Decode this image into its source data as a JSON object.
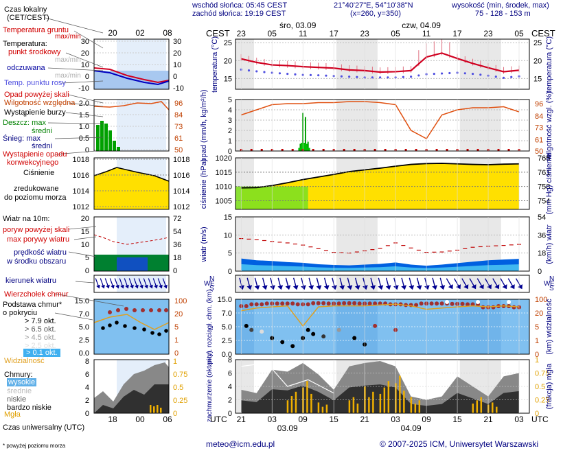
{
  "header": {
    "sunrise": "wschód słońca: 05:45 CEST",
    "sunset": "zachód słońca: 19:19 CEST",
    "coords": "21°40'27\"E, 54°10'38\"N",
    "grid": "(x=260, y=350)",
    "height_title": "wysokość (min, środek, max)",
    "height_values": "75 - 128 - 153 m"
  },
  "legend": {
    "local_time": "Czas lokalny",
    "local_time_zone": "(CET/CEST)",
    "soil_temp": "Temperatura gruntu",
    "soil_temp_range": "max/min",
    "temperature": "Temperatura:",
    "mid_point": "punkt środkowy",
    "max_min_1": "max/min",
    "felt": "odczuwana",
    "max_min_2": "max/min",
    "dew": "Temp. punktu rosy",
    "precip_above": "Opad powyżej skali",
    "humidity": "Wilgotność względna",
    "storm": "Wystąpienie burzy",
    "rain": "Deszcz: max",
    "rain_mean": "średni",
    "snow": "Śnieg: max",
    "snow_mean": "średni",
    "convective_1": "Wystąpienie opadu",
    "convective_2": "konwekcyjnego",
    "pressure_1": "Ciśnienie",
    "pressure_2": "zredukowane",
    "pressure_3": "do poziomu morza",
    "wind_10m": "Wiatr na 10m:",
    "gust_above": "poryw powyżej skali",
    "max_gust": "max porywy wiatru",
    "wind_speed_1": "prędkość wiatru",
    "wind_speed_2": "w środku obszaru",
    "wind_dir": "kierunek wiatru",
    "cloud_top": "Wierzchołek chmur",
    "cloud_base_1": "Podstawa chmur*",
    "cloud_base_2": "o pokryciu",
    "okt_1": "> 7.9 okt.",
    "okt_2": "> 6.5 okt.",
    "okt_3": "> 4.5 okt.",
    "okt_4": "> 2.5 okt.",
    "okt_5": "> 0.1 okt.",
    "visibility": "Widzialność",
    "clouds": "Chmury:",
    "high": "wysokie",
    "mid": "średnie",
    "low": "niskie",
    "very_low": "bardzo niskie",
    "fog": "Mgła",
    "utc_label": "Czas uniwersalny (UTC)",
    "footnote": "* powyżej poziomu morza",
    "mini_local_ticks": [
      "20",
      "02",
      "08"
    ],
    "mini_utc_ticks": [
      "18",
      "00",
      "06"
    ]
  },
  "axes": {
    "cest": "CEST",
    "utc": "UTC",
    "local_ticks": [
      "23",
      "05",
      "11",
      "17",
      "23",
      "05",
      "11",
      "17",
      "23",
      "05"
    ],
    "utc_ticks": [
      "21",
      "03",
      "09",
      "15",
      "21",
      "03",
      "09",
      "15",
      "21",
      "03"
    ],
    "day1_top": "śro, 03.09",
    "day2_top": "czw, 04.09",
    "day1_bottom": "03.09",
    "day2_bottom": "04.09",
    "p1_ylabel_l": "temperatura (°C)",
    "p1_ylabel_r": "temperatura (°C)",
    "p2_ylabel_l": "opad (mm/h, kg/m²/h)",
    "p2_ylabel_r": "wilgotność wzgl. (%)",
    "p3_ylabel_l": "ciśnienie (hPa)",
    "p3_ylabel_r": "(mm Hg) ciśnienie",
    "p4_ylabel_l": "wiatr (m/s)",
    "p4_ylabel_r": "(km/h) wiatr",
    "p6_ylabel_l": "pion. rozciągł. chm. (km)",
    "p6_ylabel_r": "(km) widzialność",
    "p7_ylabel_l": "zachmurzenie (oktanty)",
    "p7_ylabel_r": "(frakcja) mgła",
    "compass": [
      "N",
      "W",
      "E",
      "S"
    ]
  },
  "footer": {
    "email": "meteo@icm.edu.pl",
    "copyright": "© 2007-2025 ICM, Uniwersytet Warszawski"
  },
  "colors": {
    "temp": "#d00020",
    "dew": "#5050e0",
    "humidity": "#e05010",
    "pressure_fill": "#ffe000",
    "pressure_low_fill": "#80e020",
    "wind": "#0050d0",
    "gust": "#c00000",
    "arrow": "#000090",
    "cloud_bg": "#80c0f0",
    "visibility": "#e0a020",
    "fog": "#f0b000"
  },
  "chart_data": [
    {
      "type": "line",
      "title": "temperatura",
      "ylabel": "temperatura (°C)",
      "ylim": [
        12,
        26
      ],
      "yticks": [
        15,
        20,
        25
      ],
      "x_hours_utc": [
        0,
        3,
        6,
        9,
        12,
        15,
        18,
        21,
        24,
        27,
        30,
        33,
        36,
        39,
        42,
        45,
        48,
        51,
        54
      ],
      "series": [
        {
          "name": "punkt środkowy",
          "values": [
            20.5,
            19.5,
            18.8,
            18.6,
            18.3,
            18.1,
            17.9,
            17.4,
            17.2,
            16.8,
            16.9,
            17.2,
            21.0,
            22.1,
            20.6,
            19.2,
            18.0,
            16.9,
            17.3
          ]
        },
        {
          "name": "Temp. punktu rosy",
          "values": [
            17.5,
            17.0,
            16.6,
            16.3,
            16.0,
            15.9,
            15.7,
            15.5,
            15.3,
            15.3,
            15.3,
            15.5,
            16.2,
            16.4,
            16.6,
            16.3,
            15.8,
            15.2,
            15.6
          ]
        }
      ]
    },
    {
      "type": "bar",
      "title": "opad",
      "ylabel": "opad (mm/h, kg/m²/h)",
      "ylim": [
        0,
        5
      ],
      "yticks": [
        0,
        1,
        2,
        3,
        4,
        5
      ],
      "y2label": "wilgotność wzgl. (%)",
      "y2lim": [
        50,
        100
      ],
      "y2ticks": [
        50,
        61,
        73,
        84,
        96
      ],
      "x_hours_utc": [
        11.5,
        12,
        12.5,
        13
      ],
      "series": [
        {
          "name": "Deszcz: max",
          "values": [
            0.7,
            3.7,
            3.3,
            0.9
          ]
        },
        {
          "name": "średni",
          "values": [
            0.3,
            0.8,
            0.7,
            0.3
          ]
        },
        {
          "name": "Wilgotność względna",
          "x_hours_utc": [
            0,
            3,
            6,
            9,
            12,
            15,
            18,
            21,
            24,
            27,
            30,
            33,
            36,
            39,
            42,
            45,
            48,
            51,
            54
          ],
          "values": [
            85,
            90,
            95,
            96,
            96,
            97,
            97,
            98,
            98,
            97,
            95,
            70,
            62,
            85,
            90,
            92,
            92,
            93,
            88
          ]
        }
      ]
    },
    {
      "type": "area",
      "title": "ciśnienie",
      "ylabel": "ciśnienie (hPa)",
      "ylim": [
        1002,
        1020
      ],
      "yticks": [
        1005,
        1010,
        1015,
        1020
      ],
      "y2label": "(mm Hg)",
      "y2ticks": [
        754,
        758,
        761,
        765
      ],
      "x_hours_utc": [
        0,
        3,
        6,
        9,
        12,
        15,
        18,
        21,
        24,
        27,
        30,
        33,
        36,
        39,
        42,
        45,
        48,
        51,
        54
      ],
      "series": [
        {
          "name": "Ciśnienie",
          "values": [
            1009.5,
            1009.6,
            1010.3,
            1011.3,
            1012.4,
            1013.3,
            1014.2,
            1015.2,
            1015.8,
            1016.4,
            1017.1,
            1017.7,
            1018.0,
            1018.1,
            1017.9,
            1017.7,
            1017.6,
            1017.8,
            1017.9
          ]
        }
      ]
    },
    {
      "type": "line",
      "title": "wiatr",
      "ylabel": "wiatr (m/s)",
      "ylim": [
        0,
        15
      ],
      "yticks": [
        0,
        5,
        10,
        15
      ],
      "y2label": "(km/h)",
      "y2ticks": [
        0,
        18,
        36,
        54
      ],
      "x_hours_utc": [
        0,
        3,
        6,
        9,
        12,
        15,
        18,
        21,
        24,
        27,
        30,
        33,
        36,
        39,
        42,
        45,
        48,
        51,
        54
      ],
      "series": [
        {
          "name": "max porywy wiatru",
          "values": [
            9.0,
            8.7,
            8.2,
            7.8,
            7.2,
            6.2,
            5.2,
            5.0,
            5.6,
            6.3,
            7.8,
            6.4,
            5.2,
            5.3,
            5.8,
            6.6,
            6.9,
            7.1,
            7.4
          ]
        },
        {
          "name": "prędkość wiatru w środku obszaru",
          "values": [
            3.5,
            3.0,
            2.8,
            2.5,
            2.3,
            1.9,
            1.7,
            1.6,
            1.8,
            2.0,
            2.4,
            1.8,
            1.5,
            1.8,
            2.2,
            2.6,
            3.0,
            3.2,
            3.4
          ]
        }
      ]
    },
    {
      "type": "scatter",
      "title": "pion. rozciągł. chm.",
      "ylabel": "pion. rozciągł. chm. (km)",
      "ylim": [
        0,
        15
      ],
      "yticks": [
        0.0,
        2.5,
        5.0,
        7.0,
        15.0
      ],
      "y2label": "(km) widzialność",
      "y2ticks": [
        0,
        1,
        5,
        20,
        100
      ],
      "x_hours_utc": [
        0,
        3,
        6,
        9,
        12,
        15,
        18,
        21,
        24,
        27,
        30,
        33,
        36,
        39,
        42,
        45,
        48,
        51,
        54
      ],
      "series": [
        {
          "name": "Wierzchołek chmur",
          "values": [
            13.5,
            14.0,
            14.2,
            14.2,
            14.0,
            14.3,
            14.2,
            14.3,
            14.2,
            14.2,
            14.0,
            13.8,
            14.2,
            14.2,
            14.1,
            14.0,
            13.2,
            13.5,
            13.2
          ]
        },
        {
          "name": "Widzialność",
          "values": [
            30,
            40,
            45,
            50,
            6,
            45,
            50,
            50,
            50,
            55,
            60,
            50,
            35,
            40,
            45,
            50,
            45,
            50,
            45
          ]
        }
      ]
    },
    {
      "type": "area",
      "title": "zachmurzenie",
      "ylabel": "zachmurzenie (oktanty)",
      "ylim": [
        0,
        8
      ],
      "yticks": [
        0,
        2,
        4,
        6,
        8
      ],
      "y2label": "(frakcja) mgła",
      "y2ticks": [
        0,
        0.25,
        0.5,
        0.75,
        1
      ],
      "x_hours_utc": [
        0,
        3,
        6,
        9,
        12,
        15,
        18,
        21,
        24,
        27,
        30,
        33,
        36,
        39,
        42,
        45,
        48,
        51,
        54
      ],
      "series": [
        {
          "name": "niskie",
          "values": [
            3.5,
            3.0,
            6.5,
            6.2,
            7.5,
            5.8,
            3.5,
            7.0,
            7.5,
            7.8,
            7.0,
            2.5,
            2.0,
            2.5,
            5.5,
            4.0,
            2.5,
            5.5,
            6.0
          ]
        },
        {
          "name": "Mgła",
          "values": [
            0,
            0,
            0,
            0.4,
            0.6,
            0.2,
            0,
            0.3,
            0.5,
            0.6,
            0.7,
            0.3,
            0,
            0,
            0,
            0.3,
            0.2,
            0,
            0
          ]
        }
      ]
    }
  ]
}
